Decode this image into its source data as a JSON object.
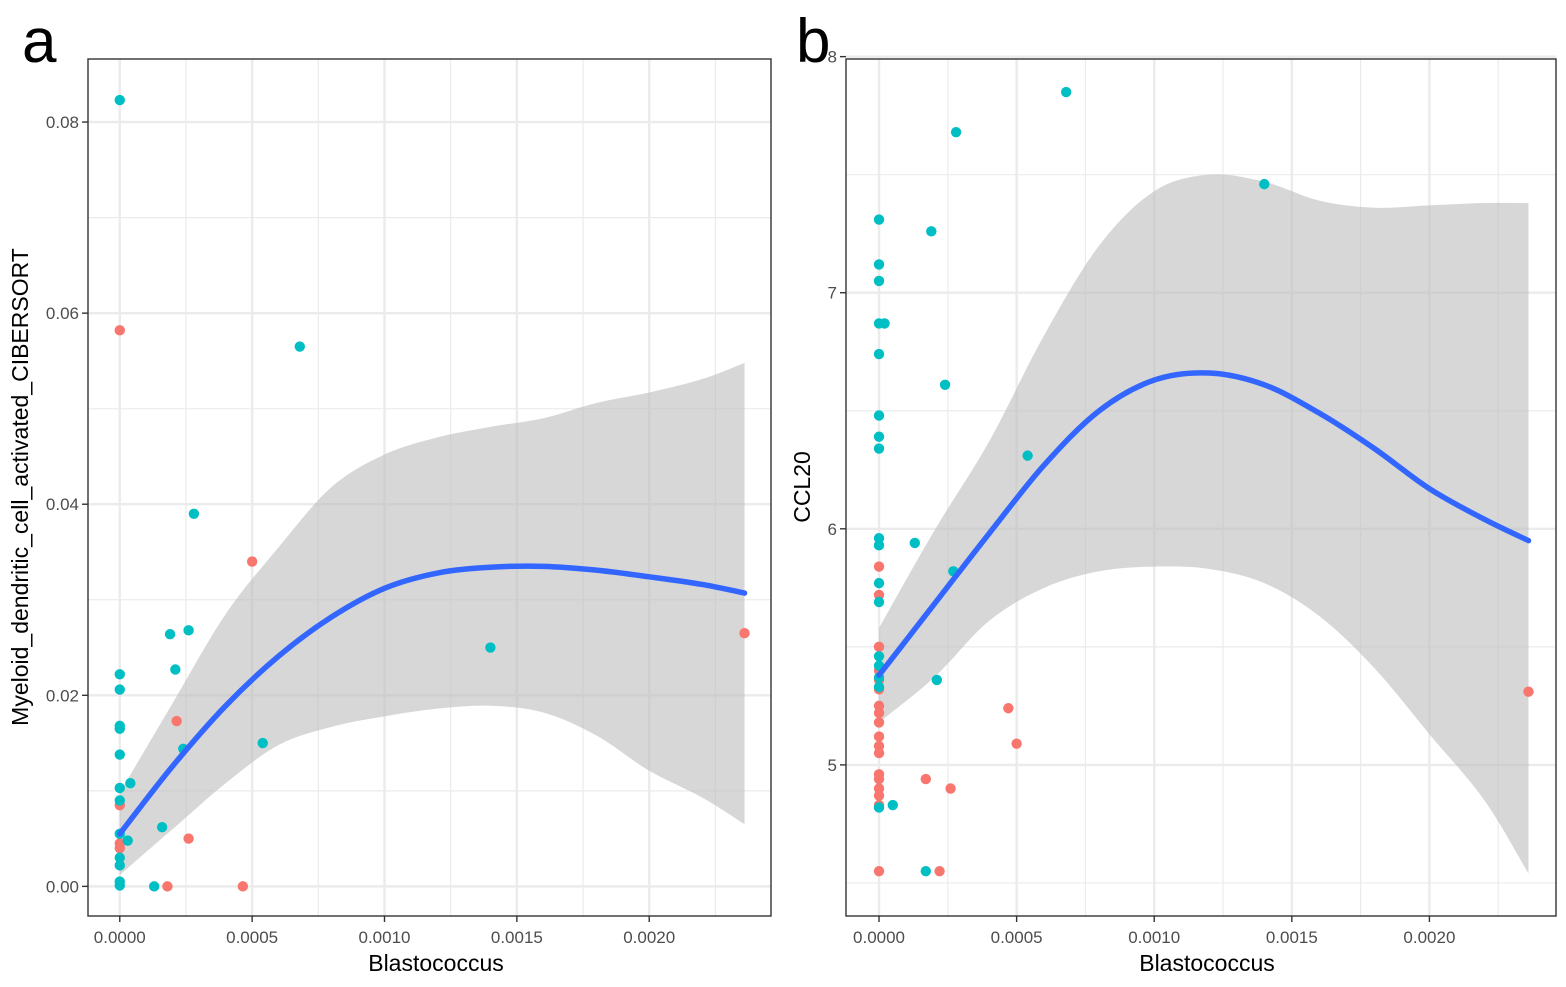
{
  "chart_data": [
    {
      "type": "scatter",
      "panel_label": "a",
      "xlabel": "Blastococcus",
      "ylabel": "Myeloid_dendritic_cell_activated_CIBERSORT",
      "xlim": [
        -0.00012,
        0.00246
      ],
      "ylim": [
        -0.0031,
        0.0866
      ],
      "x_ticks": [
        0,
        0.0005,
        0.001,
        0.0015,
        0.002
      ],
      "x_tick_labels": [
        "0.0000",
        "0.0005",
        "0.0010",
        "0.0015",
        "0.0020"
      ],
      "y_ticks": [
        0,
        0.02,
        0.04,
        0.06,
        0.08
      ],
      "y_tick_labels": [
        "0.00",
        "0.02",
        "0.04",
        "0.06",
        "0.08"
      ],
      "grid": true,
      "colors": {
        "group1": "#F8766D",
        "group2": "#00BFC4",
        "fit": "#3366FF",
        "ribbon": "#BDBDBD",
        "grid": "#EBEBEB"
      },
      "series": [
        {
          "name": "group1",
          "color": "#F8766D",
          "points": [
            [
              0,
              0.0582
            ],
            [
              0,
              0.0085
            ],
            [
              0,
              0.0045
            ],
            [
              0,
              0.004
            ],
            [
              0.00018,
              0.0
            ],
            [
              0.000215,
              0.0173
            ],
            [
              0.00026,
              0.005
            ],
            [
              0.000465,
              0.0
            ],
            [
              0.0005,
              0.034
            ],
            [
              0.00236,
              0.0265
            ]
          ]
        },
        {
          "name": "group2",
          "color": "#00BFC4",
          "points": [
            [
              0,
              0.0823
            ],
            [
              0,
              0.0222
            ],
            [
              0,
              0.0206
            ],
            [
              0,
              0.0168
            ],
            [
              0,
              0.0165
            ],
            [
              0,
              0.0138
            ],
            [
              0,
              0.0103
            ],
            [
              0,
              0.009
            ],
            [
              0,
              0.0055
            ],
            [
              0,
              0.003
            ],
            [
              0,
              0.0022
            ],
            [
              0,
              0.0005
            ],
            [
              0,
              0.0001
            ],
            [
              3e-05,
              0.0048
            ],
            [
              4e-05,
              0.0108
            ],
            [
              0.00013,
              0.0
            ],
            [
              0.00016,
              0.0062
            ],
            [
              0.00019,
              0.0264
            ],
            [
              0.00021,
              0.0227
            ],
            [
              0.00024,
              0.0144
            ],
            [
              0.00026,
              0.0268
            ],
            [
              0.00028,
              0.039
            ],
            [
              0.00054,
              0.015
            ],
            [
              0.00068,
              0.0565
            ],
            [
              0.0014,
              0.025
            ]
          ]
        }
      ],
      "fit": {
        "x": [
          0,
          0.0002,
          0.0004,
          0.0006,
          0.0008,
          0.001,
          0.0012,
          0.0014,
          0.0016,
          0.0018,
          0.002,
          0.0022,
          0.00236
        ],
        "y": [
          0.0055,
          0.0126,
          0.0189,
          0.0241,
          0.0282,
          0.0312,
          0.0328,
          0.0334,
          0.0335,
          0.0331,
          0.0324,
          0.0316,
          0.0307
        ],
        "lower": [
          0.0012,
          0.006,
          0.0108,
          0.0148,
          0.0167,
          0.0178,
          0.0186,
          0.0189,
          0.0182,
          0.0158,
          0.0121,
          0.0093,
          0.0065
        ],
        "upper": [
          0.0098,
          0.0192,
          0.0285,
          0.0355,
          0.0418,
          0.0452,
          0.047,
          0.0481,
          0.049,
          0.0506,
          0.0517,
          0.0531,
          0.0548
        ]
      }
    },
    {
      "type": "scatter",
      "panel_label": "b",
      "xlabel": "Blastococcus",
      "ylabel": "CCL20",
      "xlim": [
        -0.00012,
        0.00246
      ],
      "ylim": [
        4.36,
        7.99
      ],
      "x_ticks": [
        0,
        0.0005,
        0.001,
        0.0015,
        0.002
      ],
      "x_tick_labels": [
        "0.0000",
        "0.0005",
        "0.0010",
        "0.0015",
        "0.0020"
      ],
      "y_ticks": [
        5,
        6,
        7,
        8
      ],
      "y_tick_labels": [
        "5",
        "6",
        "7",
        "8"
      ],
      "grid": true,
      "colors": {
        "group1": "#F8766D",
        "group2": "#00BFC4",
        "fit": "#3366FF",
        "ribbon": "#BDBDBD",
        "grid": "#EBEBEB"
      },
      "series": [
        {
          "name": "group1",
          "color": "#F8766D",
          "points": [
            [
              0,
              5.84
            ],
            [
              0,
              5.72
            ],
            [
              0,
              5.5
            ],
            [
              0,
              5.4
            ],
            [
              0,
              5.36
            ],
            [
              0,
              5.32
            ],
            [
              0,
              5.25
            ],
            [
              0,
              5.22
            ],
            [
              0,
              5.18
            ],
            [
              0,
              5.12
            ],
            [
              0,
              5.08
            ],
            [
              0,
              5.05
            ],
            [
              0,
              4.96
            ],
            [
              0,
              4.94
            ],
            [
              0,
              4.9
            ],
            [
              0,
              4.87
            ],
            [
              0,
              4.83
            ],
            [
              0,
              4.55
            ],
            [
              0.00017,
              4.94
            ],
            [
              0.00022,
              4.55
            ],
            [
              0.00026,
              4.9
            ],
            [
              0.00047,
              5.24
            ],
            [
              0.0005,
              5.09
            ],
            [
              0.00236,
              5.31
            ]
          ]
        },
        {
          "name": "group2",
          "color": "#00BFC4",
          "points": [
            [
              0,
              7.31
            ],
            [
              0,
              7.12
            ],
            [
              0,
              7.05
            ],
            [
              0,
              6.87
            ],
            [
              0,
              6.74
            ],
            [
              0,
              6.48
            ],
            [
              0,
              6.39
            ],
            [
              0,
              6.34
            ],
            [
              0,
              5.96
            ],
            [
              0,
              5.93
            ],
            [
              0,
              5.77
            ],
            [
              0,
              5.69
            ],
            [
              0,
              5.46
            ],
            [
              0,
              5.42
            ],
            [
              0,
              5.37
            ],
            [
              0,
              5.33
            ],
            [
              0,
              4.82
            ],
            [
              2e-05,
              6.87
            ],
            [
              5e-05,
              4.83
            ],
            [
              0.00013,
              5.94
            ],
            [
              0.00017,
              4.55
            ],
            [
              0.00019,
              7.26
            ],
            [
              0.00021,
              5.36
            ],
            [
              0.00024,
              6.61
            ],
            [
              0.00027,
              5.82
            ],
            [
              0.00028,
              7.68
            ],
            [
              0.00054,
              6.31
            ],
            [
              0.00068,
              7.85
            ],
            [
              0.0014,
              7.46
            ]
          ]
        }
      ],
      "fit": {
        "x": [
          0,
          0.0002,
          0.0004,
          0.0006,
          0.0008,
          0.001,
          0.0012,
          0.0014,
          0.0016,
          0.0018,
          0.002,
          0.0022,
          0.00236
        ],
        "y": [
          5.38,
          5.68,
          5.98,
          6.27,
          6.5,
          6.63,
          6.66,
          6.61,
          6.49,
          6.34,
          6.17,
          6.04,
          5.95
        ],
        "lower": [
          5.18,
          5.37,
          5.61,
          5.75,
          5.82,
          5.84,
          5.83,
          5.77,
          5.63,
          5.41,
          5.13,
          4.85,
          4.54
        ],
        "upper": [
          5.58,
          5.99,
          6.37,
          6.82,
          7.2,
          7.43,
          7.5,
          7.47,
          7.39,
          7.36,
          7.37,
          7.38,
          7.38
        ]
      }
    }
  ]
}
